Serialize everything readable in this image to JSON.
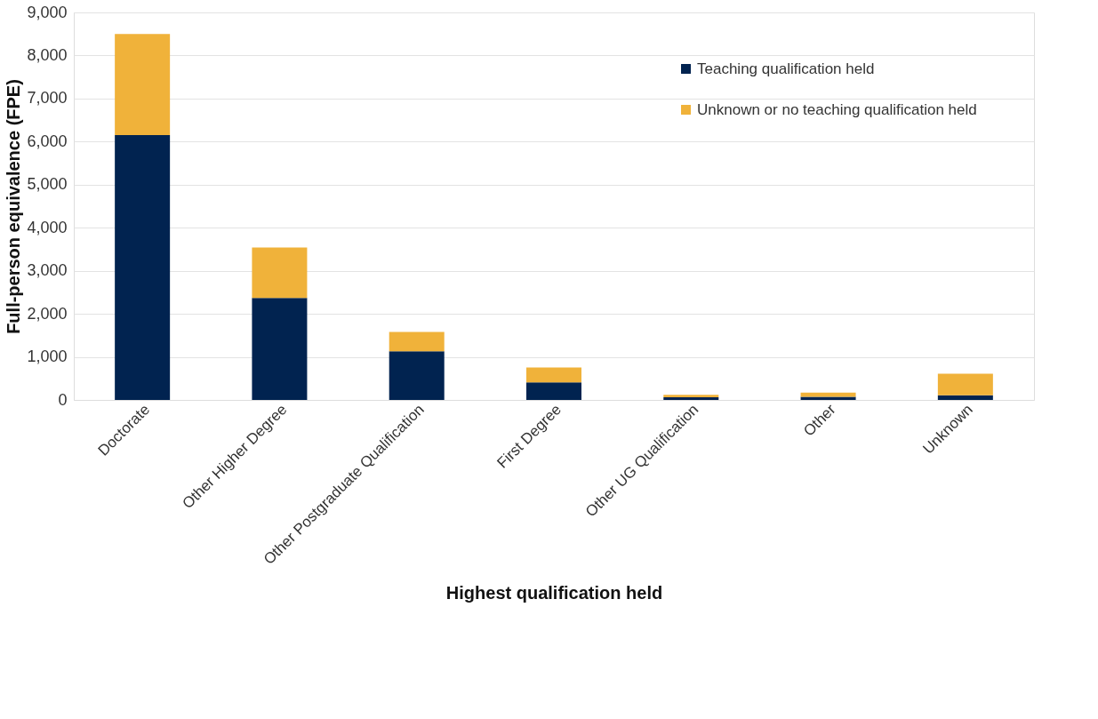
{
  "chart_data": {
    "type": "bar",
    "stacked": true,
    "xlabel": "Highest qualification held",
    "ylabel": "Full-person equivalence (FPE)",
    "categories": [
      "Doctorate",
      "Other Higher Degree",
      "Other Postgraduate Qualification",
      "First Degree",
      "Other UG Qualification",
      "Other",
      "Unknown"
    ],
    "series": [
      {
        "name": "Teaching qualification held",
        "color": "#012350",
        "values": [
          6150,
          2370,
          1130,
          410,
          60,
          70,
          110
        ]
      },
      {
        "name": "Unknown or no teaching qualification held",
        "color": "#f0b23a",
        "values": [
          2350,
          1170,
          450,
          345,
          60,
          100,
          500
        ]
      }
    ],
    "ylim": [
      0,
      9000
    ],
    "yticks": [
      {
        "value": 0,
        "label": "0"
      },
      {
        "value": 1000,
        "label": "1,000"
      },
      {
        "value": 2000,
        "label": "2,000"
      },
      {
        "value": 3000,
        "label": "3,000"
      },
      {
        "value": 4000,
        "label": "4,000"
      },
      {
        "value": 5000,
        "label": "5,000"
      },
      {
        "value": 6000,
        "label": "6,000"
      },
      {
        "value": 7000,
        "label": "7,000"
      },
      {
        "value": 8000,
        "label": "8,000"
      },
      {
        "value": 9000,
        "label": "9,000"
      }
    ],
    "grid": "y",
    "legend": "top right"
  }
}
